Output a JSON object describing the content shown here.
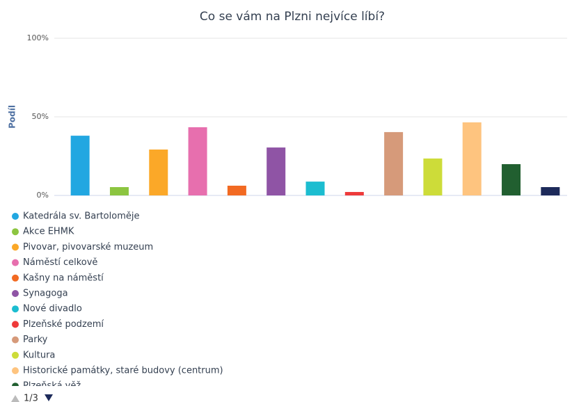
{
  "chart_data": {
    "type": "bar",
    "title": "Co se vám na Plzni nejvíce líbí?",
    "y_label": "Podíl",
    "ylim": [
      0,
      100
    ],
    "yticks": [
      {
        "value": 0,
        "label": "0%"
      },
      {
        "value": 50,
        "label": "50%"
      },
      {
        "value": 100,
        "label": "100%"
      }
    ],
    "grid": true,
    "series": [
      {
        "name": "Katedrála sv. Bartoloměje",
        "color": "#22a7e1",
        "values": [
          38
        ]
      },
      {
        "name": "Akce EHMK",
        "color": "#8cc540",
        "values": [
          5.3
        ]
      },
      {
        "name": "Pivovar, pivovarské muzeum",
        "color": "#fba828",
        "values": [
          29.2
        ]
      },
      {
        "name": "Náměstí celkově",
        "color": "#e76fae",
        "values": [
          43.4
        ]
      },
      {
        "name": "Kašny na náměstí",
        "color": "#f26a22",
        "values": [
          6.2
        ]
      },
      {
        "name": "Synagoga",
        "color": "#8f54a5",
        "values": [
          30.5
        ]
      },
      {
        "name": "Nové divadlo",
        "color": "#1cbdd0",
        "values": [
          8.8
        ]
      },
      {
        "name": "Plzeňské podzemí",
        "color": "#ee3a3a",
        "values": [
          2.2
        ]
      },
      {
        "name": "Parky",
        "color": "#d69a7a",
        "values": [
          40.3
        ]
      },
      {
        "name": "Kultura",
        "color": "#cddc39",
        "values": [
          23.5
        ]
      },
      {
        "name": "Historické památky, staré budovy (centrum)",
        "color": "#fec47f",
        "values": [
          46.5
        ]
      },
      {
        "name": "Plzeňská věž",
        "color": "#215f30",
        "values": [
          19.9
        ]
      },
      {
        "name": null,
        "color": "#1d2a5a",
        "values": [
          5.3
        ]
      }
    ],
    "legend_page": "1/3"
  }
}
